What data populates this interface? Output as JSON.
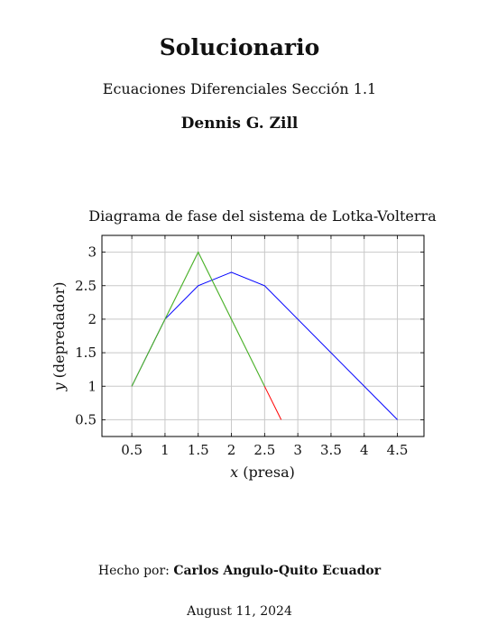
{
  "document": {
    "title": "Solucionario",
    "subtitle": "Ecuaciones Diferenciales Sección 1.1",
    "author": "Dennis G. Zill",
    "made_by_label": "Hecho por:",
    "made_by_name": "Carlos Angulo-Quito Ecuador",
    "date": "August 11, 2024"
  },
  "chart_data": {
    "type": "line",
    "title": "Diagrama de fase del sistema de Lotka-Volterra",
    "xlabel_var": "x",
    "xlabel_text": "(presa)",
    "ylabel_var": "y",
    "ylabel_text": "(depredador)",
    "xlim": [
      0.05,
      4.9
    ],
    "ylim": [
      0.25,
      3.25
    ],
    "xticks": [
      0.5,
      1,
      1.5,
      2,
      2.5,
      3,
      3.5,
      4,
      4.5
    ],
    "xtick_labels": [
      "0.5",
      "1",
      "1.5",
      "2",
      "2.5",
      "3",
      "3.5",
      "4",
      "4.5"
    ],
    "yticks": [
      0.5,
      1,
      1.5,
      2,
      2.5,
      3
    ],
    "ytick_labels": [
      "0.5",
      "1",
      "1.5",
      "2",
      "2.5",
      "3"
    ],
    "grid": true,
    "series": [
      {
        "color": "#0000ff",
        "x": [
          0.5,
          1,
          1.5,
          2,
          2.5,
          4.5
        ],
        "y": [
          1,
          2,
          2.5,
          2.7,
          2.5,
          0.5
        ]
      },
      {
        "color": "#ff0000",
        "x": [
          0.5,
          1.5,
          2.5,
          2.75
        ],
        "y": [
          1,
          3,
          1,
          0.5
        ]
      },
      {
        "color": "#33cc33",
        "x": [
          0.5,
          1.5,
          2.5
        ],
        "y": [
          1,
          3,
          1
        ]
      }
    ]
  }
}
